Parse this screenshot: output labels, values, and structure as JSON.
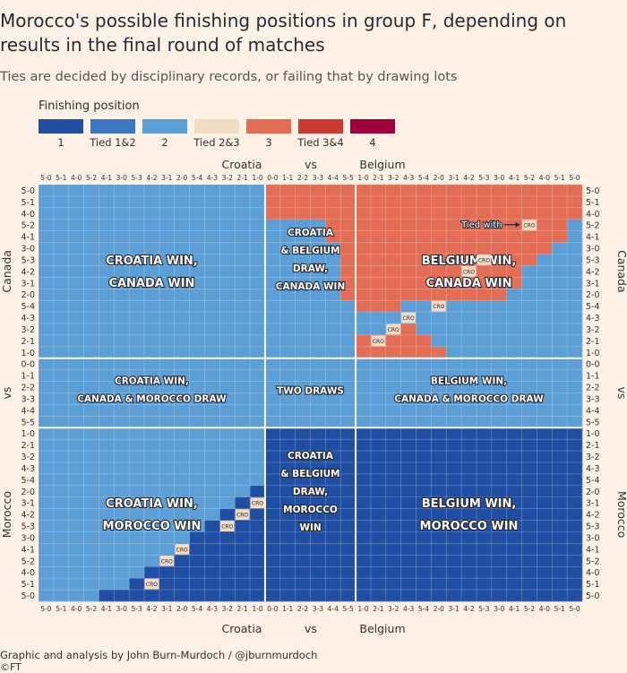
{
  "title": "Morocco's possible finishing positions in group F, depending on results in the final round of matches",
  "subtitle": "Ties are decided by disciplinary records, or failing that by drawing lots",
  "legend": {
    "title": "Finishing position",
    "items": [
      {
        "label": "1",
        "color": "#1f4ea3"
      },
      {
        "label": "Tied 1&2",
        "color": "#3a78c4"
      },
      {
        "label": "2",
        "color": "#5b9fd6"
      },
      {
        "label": "Tied 2&3",
        "color": "#f2dcc4"
      },
      {
        "label": "3",
        "color": "#e36d55"
      },
      {
        "label": "Tied 3&4",
        "color": "#cc3b33"
      },
      {
        "label": "4",
        "color": "#a0003c"
      }
    ]
  },
  "source": "Graphic and analysis by John Burn-Murdoch / @jburnmurdoch",
  "copyright": "©FT",
  "chart_data": {
    "type": "heatmap",
    "x_axis": {
      "left_team": "Croatia",
      "vs": "vs",
      "right_team": "Belgium",
      "ticks": [
        "5-0",
        "5-1",
        "4-0",
        "5-2",
        "4-1",
        "3-0",
        "5-3",
        "4-2",
        "3-1",
        "2-0",
        "5-4",
        "4-3",
        "3-2",
        "2-1",
        "1-0",
        "0-0",
        "1-1",
        "2-2",
        "3-3",
        "4-4",
        "5-5",
        "1-0",
        "2-1",
        "3-2",
        "4-3",
        "5-4",
        "2-0",
        "3-1",
        "4-2",
        "5-3",
        "3-0",
        "4-1",
        "5-2",
        "4-0",
        "5-1",
        "5-0"
      ]
    },
    "y_axis": {
      "top_team": "Canada",
      "vs": "vs",
      "bottom_team": "Morocco",
      "ticks": [
        "5-0",
        "5-1",
        "4-0",
        "5-2",
        "4-1",
        "3-0",
        "5-3",
        "4-2",
        "3-1",
        "2-0",
        "5-4",
        "4-3",
        "3-2",
        "2-1",
        "1-0",
        "0-0",
        "1-1",
        "2-2",
        "3-3",
        "4-4",
        "5-5",
        "1-0",
        "2-1",
        "3-2",
        "4-3",
        "5-4",
        "2-0",
        "3-1",
        "4-2",
        "5-3",
        "3-0",
        "4-1",
        "5-2",
        "4-0",
        "5-1",
        "5-0"
      ]
    },
    "region_labels": [
      {
        "lines": [
          "CROATIA WIN,",
          "CANADA WIN"
        ]
      },
      {
        "lines": [
          "CROATIA",
          "& BELGIUM",
          "DRAW,",
          "CANADA WIN"
        ]
      },
      {
        "lines": [
          "BELGIUM WIN,",
          "CANADA WIN"
        ]
      },
      {
        "lines": [
          "CROATIA WIN,",
          "CANADA & MOROCCO DRAW"
        ]
      },
      {
        "lines": [
          "TWO DRAWS"
        ]
      },
      {
        "lines": [
          "BELGIUM WIN,",
          "CANADA & MOROCCO DRAW"
        ]
      },
      {
        "lines": [
          "CROATIA WIN,",
          "MOROCCO WIN"
        ]
      },
      {
        "lines": [
          "CROATIA",
          "& BELGIUM",
          "DRAW,",
          "MOROCCO",
          "WIN"
        ]
      },
      {
        "lines": [
          "BELGIUM WIN,",
          "MOROCCO WIN"
        ]
      }
    ],
    "tie_marker": "CRO",
    "tie_annotation": "Tied with",
    "cells": {
      "description_free": true,
      "codes": {
        "1": "1",
        "12": "Tied 1&2",
        "2": "2",
        "3": "3"
      },
      "rules": [
        {
          "rows": [
            0,
            14
          ],
          "cols": [
            0,
            14
          ],
          "value": "2"
        },
        {
          "rows": [
            0,
            14
          ],
          "cols": [
            15,
            20
          ],
          "value": "2"
        },
        {
          "rows": [
            0,
            14
          ],
          "cols": [
            21,
            35
          ],
          "value": "3"
        },
        {
          "rows": [
            15,
            20
          ],
          "cols": [
            0,
            35
          ],
          "value": "2"
        },
        {
          "rows": [
            21,
            35
          ],
          "cols": [
            0,
            14
          ],
          "value": "2"
        },
        {
          "rows": [
            21,
            35
          ],
          "cols": [
            15,
            35
          ],
          "value": "1"
        }
      ],
      "overrides_value_2": [
        [
          0,
          15
        ],
        [
          0,
          16
        ],
        [
          0,
          17
        ],
        [
          0,
          18
        ],
        [
          0,
          19
        ],
        [
          0,
          20
        ],
        [
          1,
          15
        ],
        [
          1,
          16
        ],
        [
          1,
          17
        ],
        [
          1,
          18
        ],
        [
          1,
          19
        ],
        [
          1,
          20
        ],
        [
          2,
          15
        ],
        [
          2,
          16
        ],
        [
          2,
          17
        ],
        [
          2,
          18
        ],
        [
          2,
          19
        ],
        [
          2,
          20
        ],
        [
          3,
          17
        ],
        [
          3,
          18
        ],
        [
          3,
          19
        ],
        [
          3,
          20
        ],
        [
          4,
          18
        ],
        [
          4,
          19
        ],
        [
          4,
          20
        ],
        [
          5,
          19
        ],
        [
          5,
          20
        ],
        [
          6,
          20
        ],
        [
          7,
          20
        ],
        [
          8,
          20
        ],
        [
          9,
          20
        ]
      ],
      "overrides_value_2_in_belgium_block": [
        [
          3,
          35
        ],
        [
          4,
          35
        ],
        [
          5,
          35
        ],
        [
          5,
          34
        ],
        [
          6,
          35
        ],
        [
          6,
          34
        ],
        [
          6,
          33
        ],
        [
          7,
          35
        ],
        [
          7,
          34
        ],
        [
          7,
          33
        ],
        [
          7,
          32
        ],
        [
          8,
          35
        ],
        [
          8,
          34
        ],
        [
          8,
          33
        ],
        [
          8,
          32
        ],
        [
          9,
          35
        ],
        [
          9,
          34
        ],
        [
          9,
          33
        ],
        [
          9,
          32
        ],
        [
          9,
          31
        ],
        [
          10,
          35
        ],
        [
          10,
          34
        ],
        [
          10,
          33
        ],
        [
          10,
          32
        ],
        [
          10,
          31
        ],
        [
          10,
          30
        ],
        [
          10,
          29
        ],
        [
          10,
          28
        ],
        [
          10,
          27
        ],
        [
          10,
          26
        ],
        [
          10,
          25
        ],
        [
          10,
          24
        ],
        [
          11,
          35
        ],
        [
          11,
          34
        ],
        [
          11,
          33
        ],
        [
          11,
          32
        ],
        [
          11,
          31
        ],
        [
          11,
          30
        ],
        [
          11,
          29
        ],
        [
          11,
          28
        ],
        [
          11,
          27
        ],
        [
          11,
          26
        ],
        [
          11,
          25
        ],
        [
          11,
          24
        ],
        [
          12,
          35
        ],
        [
          12,
          34
        ],
        [
          12,
          33
        ],
        [
          12,
          32
        ],
        [
          12,
          31
        ],
        [
          12,
          30
        ],
        [
          12,
          29
        ],
        [
          12,
          28
        ],
        [
          12,
          27
        ],
        [
          12,
          26
        ],
        [
          12,
          25
        ],
        [
          13,
          35
        ],
        [
          13,
          34
        ],
        [
          13,
          33
        ],
        [
          13,
          32
        ],
        [
          13,
          31
        ],
        [
          13,
          30
        ],
        [
          13,
          29
        ],
        [
          13,
          28
        ],
        [
          13,
          27
        ],
        [
          13,
          26
        ],
        [
          14,
          35
        ],
        [
          14,
          34
        ],
        [
          14,
          33
        ],
        [
          14,
          32
        ],
        [
          14,
          31
        ],
        [
          14,
          30
        ],
        [
          14,
          29
        ],
        [
          14,
          28
        ],
        [
          14,
          27
        ],
        [
          11,
          23
        ],
        [
          11,
          22
        ],
        [
          11,
          21
        ],
        [
          12,
          21
        ],
        [
          12,
          22
        ],
        [
          12,
          23
        ]
      ],
      "overrides_value_1_in_croatia_block": [
        [
          35,
          4
        ],
        [
          35,
          5
        ],
        [
          35,
          6
        ],
        [
          35,
          7
        ],
        [
          35,
          8
        ],
        [
          35,
          9
        ],
        [
          35,
          10
        ],
        [
          35,
          11
        ],
        [
          35,
          12
        ],
        [
          35,
          13
        ],
        [
          35,
          14
        ],
        [
          34,
          6
        ],
        [
          34,
          7
        ],
        [
          34,
          8
        ],
        [
          34,
          9
        ],
        [
          34,
          10
        ],
        [
          34,
          11
        ],
        [
          34,
          12
        ],
        [
          34,
          13
        ],
        [
          34,
          14
        ],
        [
          33,
          7
        ],
        [
          33,
          8
        ],
        [
          33,
          9
        ],
        [
          33,
          10
        ],
        [
          33,
          11
        ],
        [
          33,
          12
        ],
        [
          33,
          13
        ],
        [
          33,
          14
        ],
        [
          32,
          8
        ],
        [
          32,
          9
        ],
        [
          32,
          10
        ],
        [
          32,
          11
        ],
        [
          32,
          12
        ],
        [
          32,
          13
        ],
        [
          32,
          14
        ],
        [
          31,
          9
        ],
        [
          31,
          10
        ],
        [
          31,
          11
        ],
        [
          31,
          12
        ],
        [
          31,
          13
        ],
        [
          31,
          14
        ],
        [
          30,
          10
        ],
        [
          30,
          11
        ],
        [
          30,
          12
        ],
        [
          30,
          13
        ],
        [
          30,
          14
        ],
        [
          29,
          11
        ],
        [
          29,
          12
        ],
        [
          29,
          13
        ],
        [
          29,
          14
        ],
        [
          28,
          12
        ],
        [
          28,
          13
        ],
        [
          28,
          14
        ],
        [
          27,
          13
        ],
        [
          27,
          14
        ],
        [
          26,
          14
        ]
      ]
    },
    "tie_cells": [
      [
        3,
        32
      ],
      [
        6,
        29
      ],
      [
        7,
        28
      ],
      [
        10,
        26
      ],
      [
        11,
        24
      ],
      [
        12,
        23
      ],
      [
        13,
        22
      ],
      [
        27,
        14
      ],
      [
        28,
        13
      ],
      [
        29,
        12
      ],
      [
        31,
        9
      ],
      [
        32,
        8
      ],
      [
        34,
        7
      ]
    ]
  }
}
